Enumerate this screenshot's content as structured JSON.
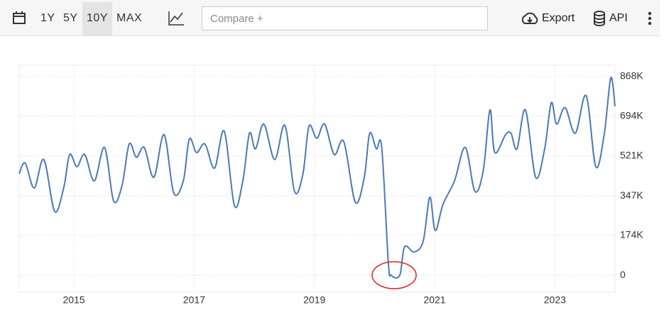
{
  "toolbar": {
    "ranges": [
      "1Y",
      "5Y",
      "10Y",
      "MAX"
    ],
    "compare_placeholder": "Compare +",
    "export": "Export",
    "api": "API"
  },
  "chart_data": {
    "type": "line",
    "x": [
      2014.09,
      2014.19,
      2014.34,
      2014.5,
      2014.68,
      2014.83,
      2014.93,
      2015.05,
      2015.18,
      2015.34,
      2015.51,
      2015.66,
      2015.8,
      2015.92,
      2016.04,
      2016.17,
      2016.33,
      2016.5,
      2016.66,
      2016.82,
      2016.92,
      2017.04,
      2017.18,
      2017.34,
      2017.5,
      2017.67,
      2017.81,
      2017.92,
      2018.02,
      2018.16,
      2018.34,
      2018.51,
      2018.67,
      2018.81,
      2018.91,
      2019.04,
      2019.17,
      2019.33,
      2019.49,
      2019.68,
      2019.83,
      2019.92,
      2020.03,
      2020.12,
      2020.23,
      2020.28,
      2020.42,
      2020.5,
      2020.66,
      2020.81,
      2020.92,
      2021.01,
      2021.14,
      2021.33,
      2021.51,
      2021.67,
      2021.81,
      2021.92,
      2022.0,
      2022.18,
      2022.27,
      2022.37,
      2022.51,
      2022.68,
      2022.83,
      2022.94,
      2023.03,
      2023.17,
      2023.34,
      2023.52,
      2023.68,
      2023.82,
      2023.93,
      2024.0
    ],
    "series": [
      {
        "color": "#4a7ab8",
        "values": [
          443000,
          490000,
          381000,
          505000,
          279000,
          381000,
          527000,
          474000,
          527000,
          412000,
          558000,
          325000,
          391000,
          573000,
          515000,
          558000,
          428000,
          614000,
          360000,
          412000,
          595000,
          536000,
          573000,
          468000,
          629000,
          304000,
          412000,
          620000,
          552000,
          660000,
          505000,
          654000,
          366000,
          443000,
          651000,
          598000,
          660000,
          527000,
          583000,
          319000,
          428000,
          620000,
          552000,
          558000,
          56000,
          0,
          0,
          124000,
          102000,
          149000,
          341000,
          195000,
          310000,
          412000,
          558000,
          366000,
          459000,
          722000,
          536000,
          614000,
          620000,
          552000,
          722000,
          428000,
          552000,
          753000,
          660000,
          732000,
          620000,
          784000,
          474000,
          614000,
          862000,
          738000
        ]
      }
    ],
    "xlim": [
      2014.09,
      2024.0
    ],
    "xticks": [
      2015,
      2017,
      2019,
      2021,
      2023
    ],
    "ylim": [
      -74000,
      917000
    ],
    "yticks": [
      0,
      {
        "value": 174000,
        "label": "174K"
      },
      {
        "value": 347000,
        "label": "347K"
      },
      {
        "value": 521000,
        "label": "521K"
      },
      {
        "value": 694000,
        "label": "694K"
      },
      {
        "value": 868000,
        "label": "868K"
      }
    ],
    "grid": true
  }
}
